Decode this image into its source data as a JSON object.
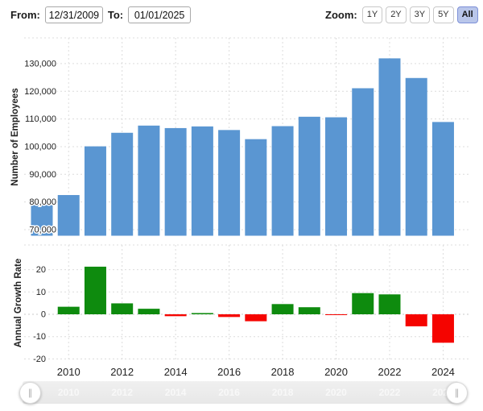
{
  "header": {
    "from_label": "From:",
    "from_value": "12/31/2009",
    "to_label": "To:",
    "to_value": "01/01/2025",
    "zoom_label": "Zoom:",
    "zoom_buttons": [
      "1Y",
      "2Y",
      "3Y",
      "5Y",
      "All"
    ],
    "active_zoom": "All"
  },
  "chart_data": [
    {
      "type": "bar",
      "title": "",
      "ylabel": "Number of Employees",
      "x": [
        2009,
        2010,
        2011,
        2012,
        2013,
        2014,
        2015,
        2016,
        2017,
        2018,
        2019,
        2020,
        2021,
        2022,
        2023,
        2024
      ],
      "values": [
        79800,
        82500,
        100100,
        105000,
        107600,
        106700,
        107300,
        106000,
        102700,
        107400,
        110800,
        110600,
        121100,
        131900,
        124800,
        108900
      ],
      "bar_color": "#5a96d2",
      "ylim": [
        67800,
        139300
      ],
      "yticks": [
        70000,
        80000,
        90000,
        100000,
        110000,
        120000,
        130000
      ],
      "ytick_labels": [
        "70,000",
        "80,000",
        "90,000",
        "100,000",
        "110,000",
        "120,000",
        "130,000"
      ],
      "xticks": [
        2010,
        2012,
        2014,
        2016,
        2018,
        2020,
        2022,
        2024
      ],
      "grid": true,
      "legend": "none"
    },
    {
      "type": "bar",
      "title": "",
      "ylabel": "Annual Growth Rate",
      "x": [
        2010,
        2011,
        2012,
        2013,
        2014,
        2015,
        2016,
        2017,
        2018,
        2019,
        2020,
        2021,
        2022,
        2023,
        2024
      ],
      "values": [
        3.38,
        21.33,
        4.9,
        2.48,
        -0.84,
        0.56,
        -1.21,
        -3.11,
        4.58,
        3.17,
        -0.18,
        9.49,
        8.92,
        -5.38,
        -12.74
      ],
      "positive_color": "#0e8b0e",
      "negative_color": "#f50400",
      "ylim": [
        -21,
        31
      ],
      "yticks": [
        20,
        10,
        0,
        -10,
        -20
      ],
      "ytick_labels": [
        "20",
        "10",
        "0",
        "-10",
        "-20"
      ],
      "xticks": [
        2010,
        2012,
        2014,
        2016,
        2018,
        2020,
        2022,
        2024
      ],
      "xtick_labels": [
        "2010",
        "2012",
        "2014",
        "2016",
        "2018",
        "2020",
        "2022",
        "2024"
      ],
      "grid": true,
      "legend": "none"
    }
  ],
  "slider": {
    "track_labels": [
      "2010",
      "2012",
      "2014",
      "2016",
      "2018",
      "2020",
      "2022",
      "2024"
    ],
    "handle_icon": "∥"
  },
  "colors": {
    "bar_blue": "#5a96d2",
    "growth_green": "#0e8b0e",
    "growth_red": "#f50400",
    "gridline": "#dcdcdc",
    "active_zoom_bg": "#b9c6ea",
    "active_zoom_border": "#7d90d8"
  }
}
